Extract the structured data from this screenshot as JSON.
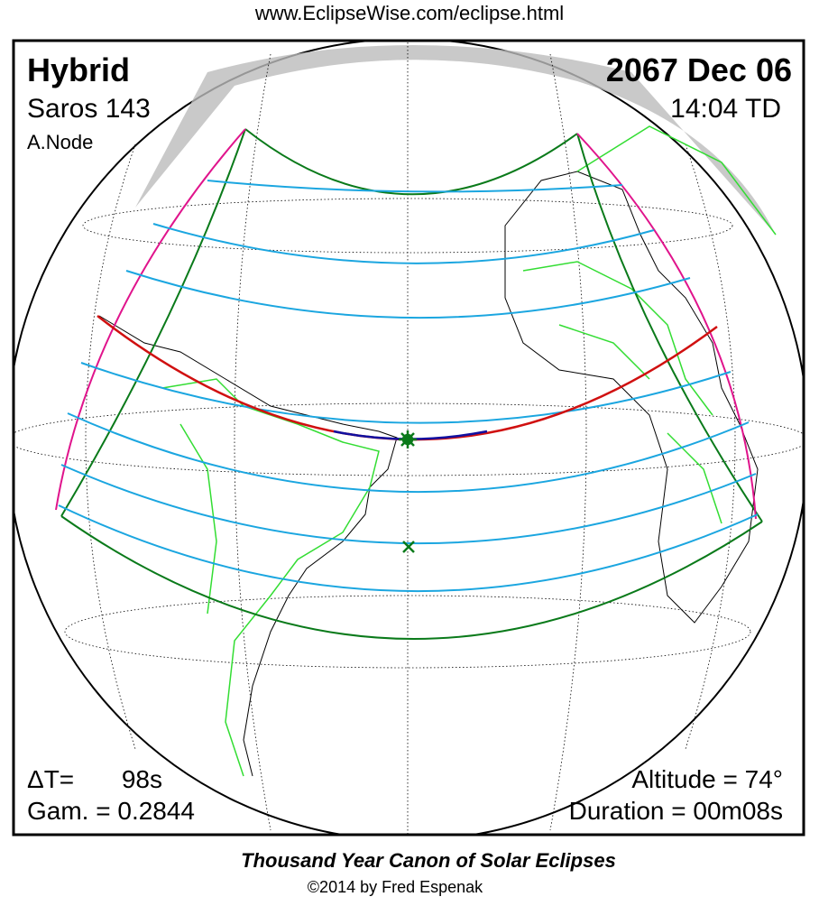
{
  "header": {
    "url": "www.EclipseWise.com/eclipse.html",
    "type": "Hybrid",
    "date": "2067 Dec 06",
    "saros": "Saros 143",
    "time": "14:04 TD",
    "node": "A.Node"
  },
  "stats": {
    "delta_t_label": "ΔT=",
    "delta_t": "98s",
    "gamma": "Gam. = 0.2844",
    "altitude": "Altitude = 74°",
    "duration": "Duration = 00m08s"
  },
  "footer": {
    "title": "Thousand Year Canon of Solar Eclipses",
    "copyright": "©2014 by Fred Espenak"
  }
}
